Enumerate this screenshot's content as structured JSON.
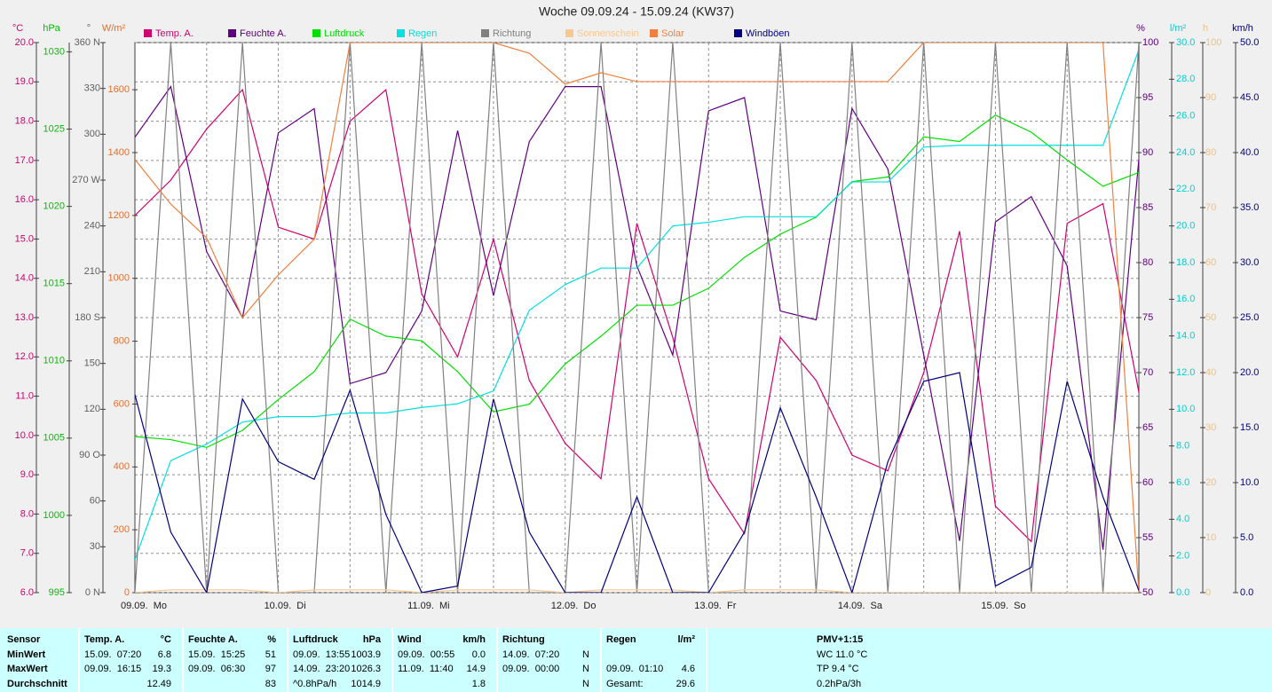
{
  "chart_data": {
    "type": "line",
    "title": "Woche 09.09.24 - 15.09.24 (KW37)",
    "x": [
      0,
      6,
      12,
      18,
      24,
      30,
      36,
      42,
      48,
      54,
      60,
      66,
      72,
      78,
      84,
      90,
      96,
      102,
      108,
      114,
      120,
      126,
      132,
      138,
      144,
      150,
      156,
      162,
      168
    ],
    "xlim": [
      0,
      168
    ],
    "xticks": [
      {
        "value": 0,
        "label": "09.09.  Mo"
      },
      {
        "value": 24,
        "label": "10.09.  Di"
      },
      {
        "value": 48,
        "label": "11.09.  Mi"
      },
      {
        "value": 72,
        "label": "12.09.  Do"
      },
      {
        "value": 96,
        "label": "13.09.  Fr"
      },
      {
        "value": 120,
        "label": "14.09.  Sa"
      },
      {
        "value": 144,
        "label": "15.09.  So"
      }
    ],
    "grid": true,
    "axes": [
      {
        "label": "°C",
        "side": "left",
        "color": "#d0006f",
        "ylim": [
          6,
          20
        ],
        "yticks": [
          {
            "value": 6,
            "label": "6.0"
          },
          {
            "value": 7,
            "label": "7.0"
          },
          {
            "value": 8,
            "label": "8.0"
          },
          {
            "value": 9,
            "label": "9.0"
          },
          {
            "value": 10,
            "label": "10.0"
          },
          {
            "value": 11,
            "label": "11.0"
          },
          {
            "value": 12,
            "label": "12.0"
          },
          {
            "value": 13,
            "label": "13.0"
          },
          {
            "value": 14,
            "label": "14.0"
          },
          {
            "value": 15,
            "label": "15.0"
          },
          {
            "value": 16,
            "label": "16.0"
          },
          {
            "value": 17,
            "label": "17.0"
          },
          {
            "value": 18,
            "label": "18.0"
          },
          {
            "value": 19,
            "label": "19.0"
          },
          {
            "value": 20,
            "label": "20.0"
          }
        ]
      },
      {
        "label": "hPa",
        "side": "left",
        "color": "#00c000",
        "ylim": [
          995,
          1030.6
        ],
        "yticks": [
          995,
          1000,
          1005,
          1010,
          1015,
          1020,
          1025,
          1030
        ]
      },
      {
        "label": "°",
        "side": "left",
        "color": "#606060",
        "ylim": [
          0,
          360
        ],
        "yticks": [
          {
            "value": 0,
            "label": "0 N"
          },
          30,
          60,
          {
            "value": 90,
            "label": "90 O"
          },
          120,
          150,
          {
            "value": 180,
            "label": "180 S"
          },
          210,
          240,
          {
            "value": 270,
            "label": "270 W"
          },
          300,
          330,
          {
            "value": 360,
            "label": "360 N"
          }
        ]
      },
      {
        "label": "W/m²",
        "side": "left",
        "color": "#e07030",
        "ylim": [
          0,
          1750
        ],
        "yticks": [
          0,
          200,
          400,
          600,
          800,
          1000,
          1200,
          1400,
          1600
        ]
      },
      {
        "label": "%",
        "side": "right",
        "color": "#600080",
        "ylim": [
          50,
          100
        ],
        "yticks": [
          50,
          55,
          60,
          65,
          70,
          75,
          80,
          85,
          90,
          95,
          100
        ]
      },
      {
        "label": "l/m²",
        "side": "right",
        "color": "#00d0d0",
        "ylim": [
          0,
          30
        ],
        "yticks": [
          {
            "value": 0,
            "label": "0.0"
          },
          {
            "value": 2,
            "label": "2.0"
          },
          {
            "value": 4,
            "label": "4.0"
          },
          {
            "value": 6,
            "label": "6.0"
          },
          {
            "value": 8,
            "label": "8.0"
          },
          {
            "value": 10,
            "label": "10.0"
          },
          {
            "value": 12,
            "label": "12.0"
          },
          {
            "value": 14,
            "label": "14.0"
          },
          {
            "value": 16,
            "label": "16.0"
          },
          {
            "value": 18,
            "label": "18.0"
          },
          {
            "value": 20,
            "label": "20.0"
          },
          {
            "value": 22,
            "label": "22.0"
          },
          {
            "value": 24,
            "label": "24.0"
          },
          {
            "value": 26,
            "label": "26.0"
          },
          {
            "value": 28,
            "label": "28.0"
          },
          {
            "value": 30,
            "label": "30.0"
          }
        ]
      },
      {
        "label": "h",
        "side": "right",
        "color": "#f0c080",
        "ylim": [
          0,
          100
        ],
        "yticks": [
          0,
          10,
          20,
          30,
          40,
          50,
          60,
          70,
          80,
          90,
          100
        ]
      },
      {
        "label": "km/h",
        "side": "right",
        "color": "#000080",
        "ylim": [
          0,
          50
        ],
        "yticks": [
          {
            "value": 0,
            "label": "0.0"
          },
          {
            "value": 5,
            "label": "5.0"
          },
          {
            "value": 10,
            "label": "10.0"
          },
          {
            "value": 15,
            "label": "15.0"
          },
          {
            "value": 20,
            "label": "20.0"
          },
          {
            "value": 25,
            "label": "25.0"
          },
          {
            "value": 30,
            "label": "30.0"
          },
          {
            "value": 35,
            "label": "35.0"
          },
          {
            "value": 40,
            "label": "40.0"
          },
          {
            "value": 45,
            "label": "45.0"
          },
          {
            "value": 50,
            "label": "50.0"
          }
        ]
      }
    ],
    "series": [
      {
        "name": "Temp. A.",
        "color": "#d0006f",
        "axis": 0,
        "values": [
          15.6,
          16.5,
          17.8,
          18.8,
          15.3,
          15.0,
          18.0,
          18.8,
          13.6,
          12.0,
          15.0,
          11.4,
          9.8,
          8.9,
          15.4,
          12.5,
          8.9,
          7.5,
          12.5,
          11.4,
          9.5,
          9.1,
          11.6,
          15.2,
          8.2,
          7.3,
          15.4,
          15.9,
          11.1
        ]
      },
      {
        "name": "Feuchte A.",
        "color": "#600080",
        "axis": 4,
        "values": [
          91.4,
          96,
          81,
          75,
          91.8,
          94,
          69,
          70,
          75.6,
          92,
          77,
          91,
          96,
          96,
          79.7,
          71.6,
          93.8,
          95,
          75.6,
          74.8,
          94,
          88.5,
          71.6,
          54.7,
          83.7,
          86,
          79.7,
          53.9,
          89.4
        ]
      },
      {
        "name": "Luftdruck",
        "color": "#00e000",
        "axis": 1,
        "values": [
          1005.1,
          1004.9,
          1004.4,
          1005.5,
          1007.5,
          1009.3,
          1012.7,
          1011.6,
          1011.3,
          1009.3,
          1006.7,
          1007.2,
          1009.8,
          1011.6,
          1013.6,
          1013.6,
          1014.7,
          1016.7,
          1018.2,
          1019.3,
          1021.6,
          1021.9,
          1024.5,
          1024.2,
          1025.9,
          1024.8,
          1023.0,
          1021.3,
          1022.2
        ]
      },
      {
        "name": "Regen",
        "color": "#00e0e0",
        "axis": 5,
        "values": [
          1.8,
          7.2,
          8.1,
          9.3,
          9.6,
          9.6,
          9.8,
          9.8,
          10.1,
          10.3,
          11.0,
          15.4,
          16.8,
          17.7,
          17.7,
          20.0,
          20.2,
          20.5,
          20.5,
          20.5,
          22.4,
          22.4,
          24.3,
          24.4,
          24.4,
          24.4,
          24.4,
          24.4,
          29.6
        ]
      },
      {
        "name": "Richtung",
        "color": "#808080",
        "axis": 2,
        "values": [
          0,
          360,
          0,
          360,
          0,
          0,
          360,
          0,
          360,
          0,
          360,
          0,
          0,
          360,
          0,
          360,
          0,
          0,
          360,
          0,
          360,
          0,
          360,
          0,
          360,
          0,
          360,
          0,
          360
        ]
      },
      {
        "name": "Sonnenschein",
        "color": "#f8c890",
        "axis": 6,
        "values": [
          0,
          0.5,
          0.5,
          0.5,
          0,
          0.5,
          0.5,
          0.5,
          0,
          0.5,
          0.5,
          0.5,
          0,
          0.5,
          0.5,
          0.5,
          0,
          0.5,
          0.5,
          0.5,
          0,
          0,
          0,
          0,
          0,
          0,
          0,
          0,
          0
        ]
      },
      {
        "name": "Solar",
        "color": "#f08040",
        "axis": 3,
        "values": [
          1378,
          1236,
          1129,
          875,
          1011,
          1124,
          1750,
          1750,
          1750,
          1750,
          1750,
          1716,
          1618,
          1654,
          1626,
          1626,
          1626,
          1626,
          1626,
          1626,
          1626,
          1626,
          1750,
          1750,
          1750,
          1750,
          1750,
          1750,
          0
        ]
      },
      {
        "name": "Windböen",
        "color": "#000080",
        "axis": 7,
        "values": [
          18,
          5.5,
          0,
          17.6,
          11.9,
          10.3,
          18.4,
          7.1,
          0,
          0.6,
          17.6,
          5.5,
          0,
          0,
          8.7,
          0,
          0,
          5.5,
          16.8,
          8.7,
          0,
          11.9,
          19.2,
          20,
          0.6,
          2.3,
          19.2,
          8.7,
          0.2
        ]
      }
    ]
  },
  "table": {
    "labels": [
      "Sensor",
      "MinWert",
      "MaxWert",
      "Durchschnitt"
    ],
    "groups": [
      {
        "name": "Temp. A.",
        "unit": "°C",
        "rows": [
          {
            "when": "15.09.  07:20",
            "value": "6.8"
          },
          {
            "when": "09.09.  16:15",
            "value": "19.3"
          },
          {
            "value": "12.49"
          }
        ]
      },
      {
        "name": "Feuchte A.",
        "unit": "%",
        "rows": [
          {
            "when": "15.09.  15:25",
            "value": "51"
          },
          {
            "when": "09.09.  06:30",
            "value": "97"
          },
          {
            "value": "83"
          }
        ]
      },
      {
        "name": "Luftdruck",
        "unit": "hPa",
        "rows": [
          {
            "when": "09.09.  13:55",
            "value": "1003.9"
          },
          {
            "when": "14.09.  23:20",
            "value": "1026.3"
          },
          {
            "when": "^0.8hPa/h",
            "value": "1014.9"
          }
        ]
      },
      {
        "name": "Wind",
        "unit": "km/h",
        "rows": [
          {
            "when": "09.09.  00:55",
            "value": "0.0"
          },
          {
            "when": "11.09.  11:40",
            "value": "14.9"
          },
          {
            "value": "1.8"
          }
        ]
      },
      {
        "name": "Richtung",
        "rows": [
          {
            "when": "14.09.  07:20",
            "value": "N"
          },
          {
            "when": "09.09.  00:00",
            "value": "N"
          },
          {
            "value": "N"
          }
        ]
      },
      {
        "name": "Regen",
        "unit": "l/m²",
        "rows": [
          null,
          {
            "when": "09.09.  01:10",
            "value": "4.6"
          },
          {
            "when": "Gesamt:",
            "value": "29.6"
          }
        ]
      }
    ],
    "pmv": {
      "title": "PMV+1:15",
      "lines": [
        "WC 11.0 °C",
        "TP 9.4 °C",
        "0.2hPa/3h"
      ]
    }
  }
}
